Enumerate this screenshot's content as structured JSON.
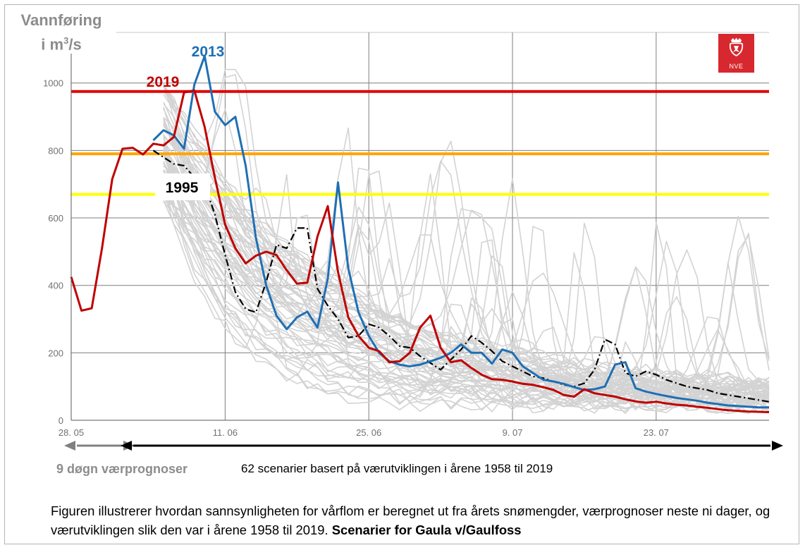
{
  "labels": {
    "y_title_line1": "Vannføring",
    "y_title_line2_base": "i m",
    "y_title_line2_sup": "3",
    "y_title_line2_end": "/s",
    "logo_text": "NVE",
    "note_left": "9 døgn værprognoser",
    "note_right": "62 scenarier basert på værutviklingen i årene 1958 til 2019",
    "caption_main": "Figuren illustrerer hvordan sannsynligheten for vårflom er beregnet ut fra årets snømengder, værprognoser neste ni dager, og værutviklingen slik den var i årene 1958 til 2019.",
    "caption_bold": "Scenarier for Gaula v/Gaulfoss"
  },
  "colors": {
    "series_2019": "#c00000",
    "series_2013": "#1f6fb4",
    "series_1995": "#000000",
    "scenarios": "#d3d3d3",
    "level_red": "#e00000",
    "level_orange": "#ffa500",
    "level_yellow": "#ffff00",
    "arrow_grey": "#808080",
    "arrow_black": "#000000"
  },
  "chart_data": {
    "type": "line",
    "title": "",
    "xlabel": "",
    "ylabel": "Vannføring i m³/s",
    "ylim": [
      0,
      1150
    ],
    "xlim": [
      0,
      68
    ],
    "x_unit": "days since 28.05",
    "yticks": [
      0,
      200,
      400,
      600,
      800,
      1000
    ],
    "xticks": [
      {
        "x": 0,
        "label": "28. 05"
      },
      {
        "x": 15,
        "label": "11. 06"
      },
      {
        "x": 29,
        "label": "25. 06"
      },
      {
        "x": 43,
        "label": "9. 07"
      },
      {
        "x": 57,
        "label": "23. 07"
      }
    ],
    "thresholds": [
      {
        "value": 975,
        "color": "#e00000"
      },
      {
        "value": 790,
        "color": "#ffa500"
      },
      {
        "value": 670,
        "color": "#ffff00"
      }
    ],
    "arrows": [
      {
        "from": 0,
        "to": 5.5,
        "color": "#808080"
      },
      {
        "from": 5.5,
        "to": 68,
        "color": "#000000"
      }
    ],
    "series": [
      {
        "name": "2019",
        "color": "#c00000",
        "x": [
          0,
          1,
          2,
          3,
          4,
          5,
          6,
          7,
          8,
          9,
          10,
          11,
          12,
          13,
          14,
          15,
          16,
          17,
          18,
          19,
          20,
          21,
          22,
          23,
          24,
          25,
          26,
          27,
          28,
          29,
          30,
          31,
          32,
          33,
          34,
          35,
          36,
          37,
          38,
          39,
          40,
          41,
          42,
          43,
          44,
          45,
          46,
          47,
          48,
          49,
          50,
          51,
          52,
          53,
          54,
          55,
          56,
          57,
          58,
          59,
          60,
          61,
          62,
          63,
          64,
          65,
          66,
          67,
          68
        ],
        "y": [
          425,
          325,
          332,
          510,
          715,
          805,
          808,
          788,
          820,
          815,
          840,
          972,
          978,
          870,
          720,
          580,
          510,
          465,
          488,
          500,
          490,
          445,
          405,
          408,
          545,
          635,
          440,
          305,
          250,
          215,
          205,
          172,
          175,
          200,
          275,
          310,
          215,
          172,
          178,
          155,
          135,
          122,
          120,
          115,
          108,
          105,
          98,
          90,
          75,
          70,
          92,
          80,
          75,
          70,
          62,
          56,
          52,
          55,
          50,
          46,
          44,
          40,
          37,
          33,
          30,
          28,
          26,
          25,
          24
        ]
      },
      {
        "name": "2013",
        "color": "#1f6fb4",
        "x": [
          8,
          9,
          10,
          11,
          12,
          13,
          14,
          15,
          16,
          17,
          18,
          19,
          20,
          21,
          22,
          23,
          24,
          25,
          26,
          27,
          28,
          29,
          30,
          31,
          32,
          33,
          34,
          35,
          36,
          37,
          38,
          39,
          40,
          41,
          42,
          43,
          44,
          45,
          46,
          47,
          48,
          49,
          50,
          51,
          52,
          53,
          54,
          55,
          56,
          57,
          58,
          59,
          60,
          61,
          62,
          63,
          64,
          65,
          66,
          67,
          68
        ],
        "y": [
          830,
          860,
          845,
          805,
          995,
          1080,
          915,
          875,
          900,
          755,
          540,
          400,
          310,
          270,
          305,
          322,
          275,
          420,
          705,
          450,
          320,
          250,
          200,
          175,
          165,
          160,
          165,
          175,
          185,
          200,
          225,
          200,
          200,
          168,
          210,
          200,
          160,
          140,
          120,
          115,
          108,
          98,
          90,
          92,
          100,
          165,
          172,
          95,
          85,
          78,
          72,
          66,
          62,
          58,
          52,
          48,
          44,
          42,
          40,
          38,
          38
        ]
      },
      {
        "name": "1995",
        "color": "#000000",
        "x": [
          8,
          9,
          10,
          11,
          12,
          13,
          14,
          15,
          16,
          17,
          18,
          19,
          20,
          21,
          22,
          23,
          24,
          25,
          26,
          27,
          28,
          29,
          30,
          31,
          32,
          33,
          34,
          35,
          36,
          37,
          38,
          39,
          40,
          41,
          42,
          43,
          44,
          45,
          46,
          47,
          48,
          49,
          50,
          51,
          52,
          53,
          54,
          55,
          56,
          57,
          58,
          59,
          60,
          61,
          62,
          63,
          64,
          65,
          66,
          67,
          68
        ],
        "y": [
          800,
          780,
          760,
          755,
          720,
          700,
          610,
          490,
          380,
          330,
          320,
          410,
          520,
          510,
          570,
          570,
          390,
          340,
          300,
          245,
          250,
          285,
          275,
          250,
          220,
          215,
          190,
          170,
          150,
          180,
          210,
          250,
          230,
          205,
          175,
          160,
          145,
          130,
          125,
          115,
          105,
          100,
          110,
          150,
          240,
          225,
          140,
          130,
          145,
          135,
          120,
          110,
          100,
          95,
          90,
          80,
          75,
          70,
          65,
          60,
          55
        ]
      }
    ]
  }
}
